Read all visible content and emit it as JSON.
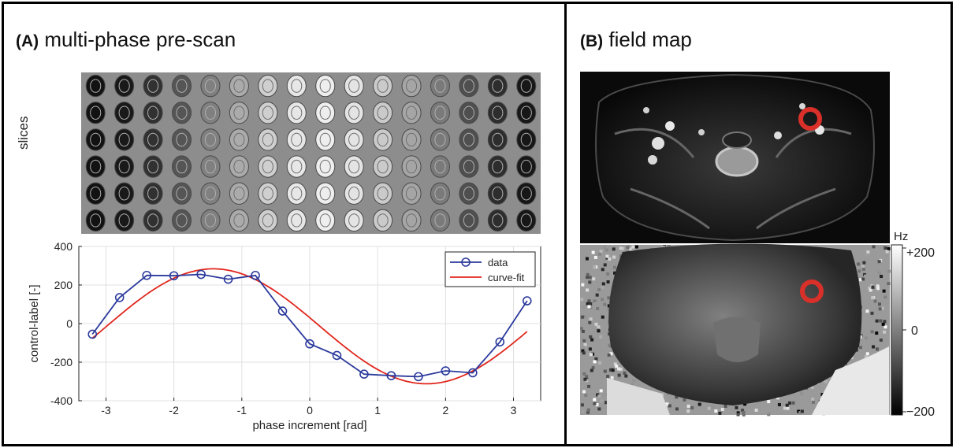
{
  "panel_a": {
    "tag": "(A)",
    "title": "multi-phase pre-scan",
    "slices_label": "slices"
  },
  "panel_b": {
    "tag": "(B)",
    "title": "field map",
    "colorbar": {
      "unit": "Hz",
      "ticks": [
        "+200",
        "0",
        "−200"
      ]
    }
  },
  "colors": {
    "data": "#2b3a9c",
    "fit": "#e0261c",
    "marker_ring": "#d9302a"
  },
  "chart_data": {
    "type": "line",
    "xlabel": "phase increment [rad]",
    "ylabel": "control-label [-]",
    "xlim": [
      -3.4,
      3.4
    ],
    "ylim": [
      -400,
      400
    ],
    "xticks": [
      -3,
      -2,
      -1,
      0,
      1,
      2,
      3
    ],
    "yticks": [
      400,
      200,
      0,
      -200,
      -400
    ],
    "grid": true,
    "legend_position": "top-right",
    "series": [
      {
        "name": "data",
        "style": "line-with-circle-markers",
        "x": [
          -3.2,
          -2.8,
          -2.4,
          -2.0,
          -1.6,
          -1.2,
          -0.8,
          -0.4,
          0.0,
          0.4,
          0.8,
          1.2,
          1.6,
          2.0,
          2.4,
          2.8,
          3.2
        ],
        "y": [
          -55,
          135,
          250,
          248,
          255,
          230,
          250,
          65,
          -105,
          -165,
          -262,
          -270,
          -275,
          -245,
          -255,
          -95,
          118
        ]
      },
      {
        "name": "curve-fit",
        "style": "line",
        "x": [
          -3.2,
          -2.8,
          -2.4,
          -2.0,
          -1.6,
          -1.2,
          -0.8,
          -0.4,
          0.0,
          0.4,
          0.8,
          1.2,
          1.6,
          2.0,
          2.4,
          2.8,
          3.2
        ],
        "y": [
          24,
          151,
          243,
          284,
          280,
          218,
          117,
          -12,
          -141,
          -236,
          -293,
          -310,
          -286,
          -228,
          -139,
          -38,
          24
        ]
      }
    ]
  }
}
